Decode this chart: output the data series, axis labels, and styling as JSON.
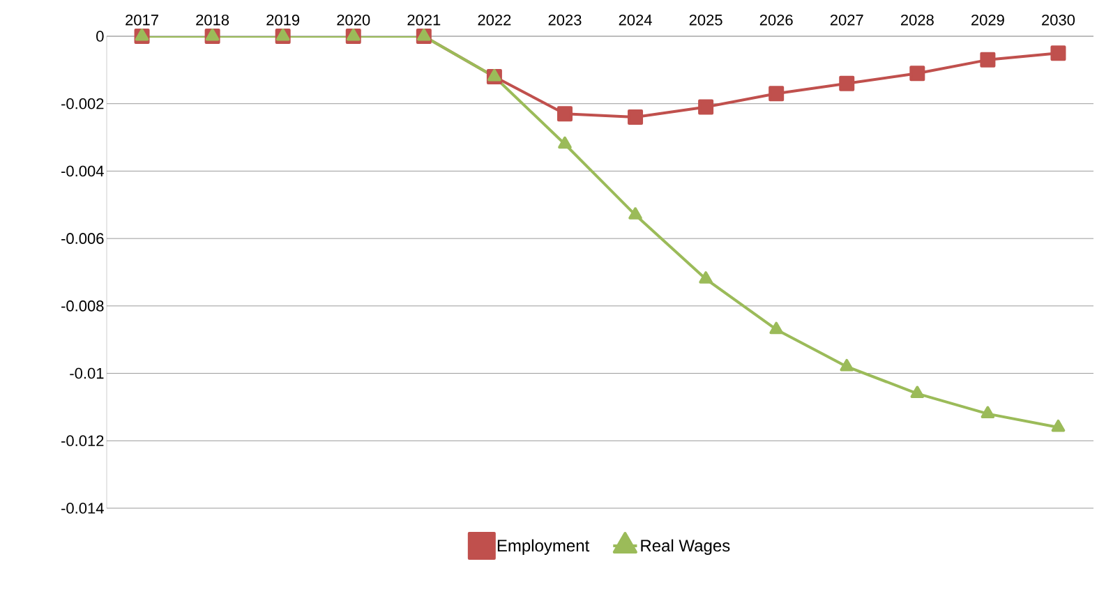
{
  "chart_data": {
    "type": "line",
    "categories": [
      "2017",
      "2018",
      "2019",
      "2020",
      "2021",
      "2022",
      "2023",
      "2024",
      "2025",
      "2026",
      "2027",
      "2028",
      "2029",
      "2030"
    ],
    "series": [
      {
        "name": "Employment",
        "color": "#c0504d",
        "marker": "square",
        "values": [
          0,
          0,
          0,
          0,
          0,
          -0.0012,
          -0.0023,
          -0.0024,
          -0.0021,
          -0.0017,
          -0.0014,
          -0.0011,
          -0.0007,
          -0.0005
        ]
      },
      {
        "name": "Real Wages",
        "color": "#9bbb59",
        "marker": "triangle",
        "values": [
          0,
          0,
          0,
          0,
          0,
          -0.0012,
          -0.0032,
          -0.0053,
          -0.0072,
          -0.0087,
          -0.0098,
          -0.0106,
          -0.0112,
          -0.0116
        ]
      }
    ],
    "ylim": [
      -0.014,
      0
    ],
    "yticks": [
      -0.014,
      -0.012,
      -0.01,
      -0.008,
      -0.006,
      -0.004,
      -0.002,
      0
    ],
    "grid": "y",
    "legend": "bottom",
    "line_style": "solid"
  }
}
